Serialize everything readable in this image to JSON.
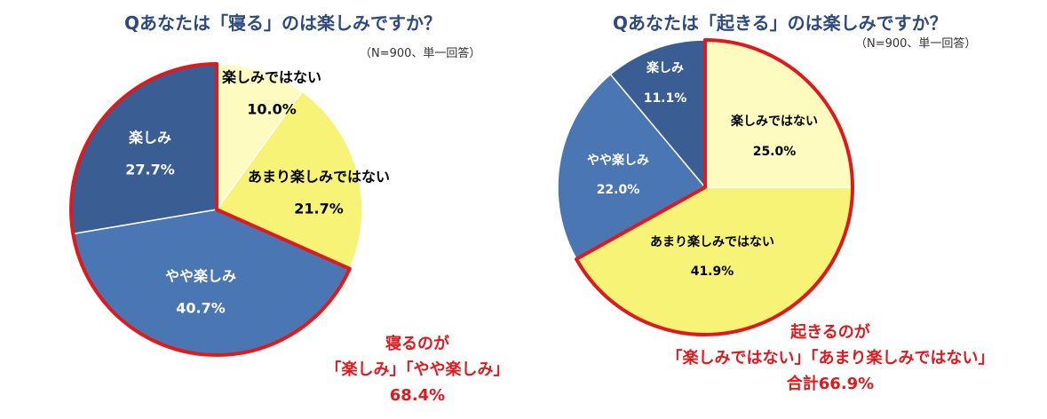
{
  "charts": [
    {
      "title": "Qあなたは「寝る」のは楽しみですか？",
      "note": "（N=900、単一回答）",
      "callout": [
        "寝るのが",
        "「楽しみ」「やや楽しみ」",
        "68.4%"
      ],
      "chart_data": {
        "type": "pie",
        "slices": [
          {
            "label": "楽しみではない",
            "value": 10.0,
            "value_label": "10.0%",
            "color": "#fefbc0"
          },
          {
            "label": "あまり楽しみではない",
            "value": 21.7,
            "value_label": "21.7%",
            "color": "#f7f376"
          },
          {
            "label": "やや楽しみ",
            "value": 40.7,
            "value_label": "40.7%",
            "color": "#4a76b4"
          },
          {
            "label": "楽しみ",
            "value": 27.7,
            "value_label": "27.7%",
            "color": "#3a5e94"
          }
        ],
        "highlighted": [
          "やや楽しみ",
          "楽しみ"
        ]
      }
    },
    {
      "title": "Qあなたは「起きる」のは楽しみですか？",
      "note": "（N=900、単一回答）",
      "callout": [
        "起きるのが",
        "「楽しみではない」「あまり楽しみではない」",
        "合計66.9%"
      ],
      "chart_data": {
        "type": "pie",
        "slices": [
          {
            "label": "楽しみではない",
            "value": 25.0,
            "value_label": "25.0%",
            "color": "#fefbc0"
          },
          {
            "label": "あまり楽しみではない",
            "value": 41.9,
            "value_label": "41.9%",
            "color": "#f7f376"
          },
          {
            "label": "やや楽しみ",
            "value": 22.0,
            "value_label": "22.0%",
            "color": "#4a76b4"
          },
          {
            "label": "楽しみ",
            "value": 11.1,
            "value_label": "11.1%",
            "color": "#3a5e94"
          }
        ],
        "highlighted": [
          "楽しみではない",
          "あまり楽しみではない"
        ]
      }
    }
  ],
  "colors": {
    "highlight_border": "#e0191c",
    "slice_border": "#ffffff",
    "title": "#2e4a82",
    "label_dark": "#000000",
    "label_light": "#ffffff"
  }
}
